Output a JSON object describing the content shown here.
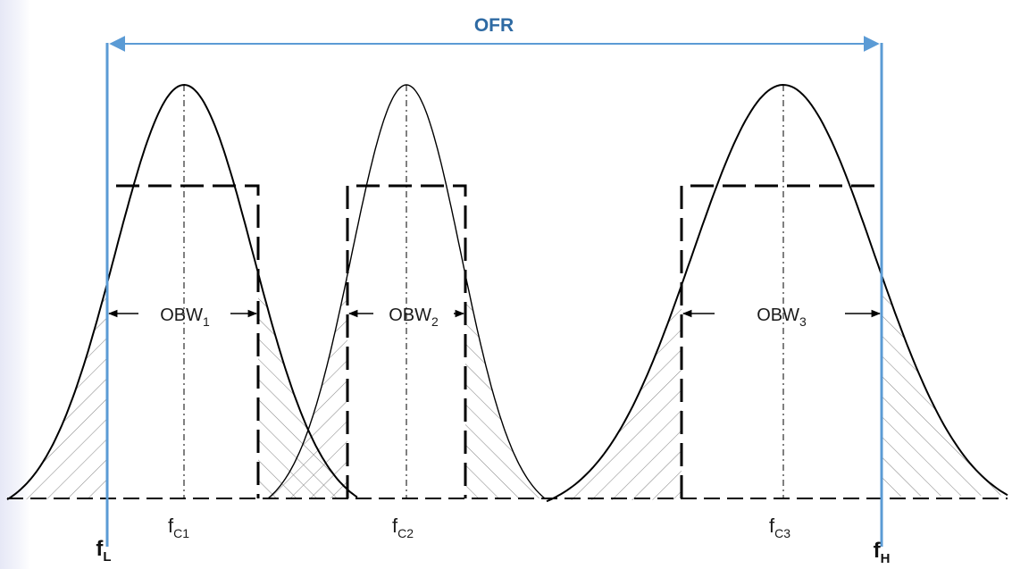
{
  "labels": {
    "range": "OFR",
    "obw1": {
      "base": "OBW",
      "sub": "1"
    },
    "obw2": {
      "base": "OBW",
      "sub": "2"
    },
    "obw3": {
      "base": "OBW",
      "sub": "3"
    },
    "fc1": {
      "base": "f",
      "sub": "C1"
    },
    "fc2": {
      "base": "f",
      "sub": "C2"
    },
    "fc3": {
      "base": "f",
      "sub": "C3"
    },
    "fl": {
      "base": "f",
      "sub": "L"
    },
    "fh": {
      "base": "f",
      "sub": "H"
    }
  },
  "colors": {
    "range_line": "#5b9bd5",
    "range_text": "#2e6aa3",
    "curve": "#000000",
    "hatch": "#8a8a8a"
  }
}
